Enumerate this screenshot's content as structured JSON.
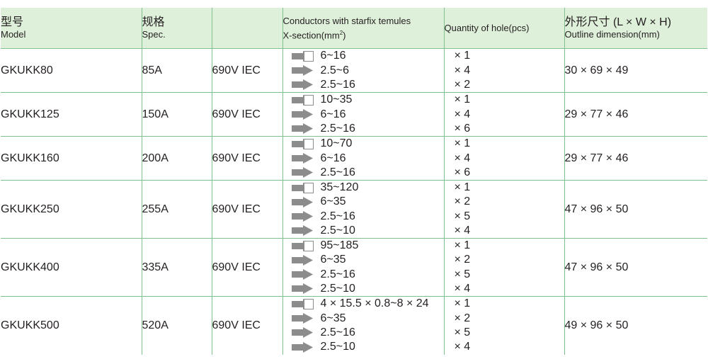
{
  "header": {
    "model_zh": "型号",
    "model_en": "Model",
    "spec_zh": "规格",
    "spec_en": "Spec.",
    "conductors_line1": "Conductors with starfix temules",
    "conductors_line2": "X-section(mm",
    "conductors_sup": "2",
    "conductors_close": ")",
    "quantity": "Quantity of hole(pcs)",
    "outline_zh": "外形尺寸 (L × W × H)",
    "outline_en": "Outline dimension(mm)"
  },
  "rows": [
    {
      "model": "GKUKK80",
      "spec": "85A",
      "voltage": "690V IEC",
      "conductors": [
        {
          "icon": "arrow-outline-icon",
          "text": "6~16"
        },
        {
          "icon": "arrow-solid-icon",
          "text": "2.5~6"
        },
        {
          "icon": "arrow-solid-icon",
          "text": "2.5~16"
        }
      ],
      "quantities": [
        "× 1",
        "× 4",
        "× 2"
      ],
      "outline": "30 × 69 × 49"
    },
    {
      "model": "GKUKK125",
      "spec": "150A",
      "voltage": "690V IEC",
      "conductors": [
        {
          "icon": "arrow-outline-icon",
          "text": "10~35"
        },
        {
          "icon": "arrow-solid-icon",
          "text": "6~16"
        },
        {
          "icon": "arrow-solid-icon",
          "text": "2.5~16"
        }
      ],
      "quantities": [
        "× 1",
        "× 4",
        "× 6"
      ],
      "outline": "29 × 77 × 46"
    },
    {
      "model": "GKUKK160",
      "spec": "200A",
      "voltage": "690V IEC",
      "conductors": [
        {
          "icon": "arrow-outline-icon",
          "text": "10~70"
        },
        {
          "icon": "arrow-solid-icon",
          "text": "6~16"
        },
        {
          "icon": "arrow-solid-icon",
          "text": "2.5~16"
        }
      ],
      "quantities": [
        "× 1",
        "× 4",
        "× 6"
      ],
      "outline": "29 × 77 × 46"
    },
    {
      "model": "GKUKK250",
      "spec": "255A",
      "voltage": "690V IEC",
      "conductors": [
        {
          "icon": "arrow-outline-icon",
          "text": "35~120"
        },
        {
          "icon": "arrow-solid-icon",
          "text": "6~35"
        },
        {
          "icon": "arrow-solid-icon",
          "text": "2.5~16"
        },
        {
          "icon": "arrow-solid-icon",
          "text": "2.5~10"
        }
      ],
      "quantities": [
        "× 1",
        "× 2",
        "× 5",
        "× 4"
      ],
      "outline": "47 × 96 × 50"
    },
    {
      "model": "GKUKK400",
      "spec": "335A",
      "voltage": "690V IEC",
      "conductors": [
        {
          "icon": "arrow-outline-icon",
          "text": "95~185"
        },
        {
          "icon": "arrow-solid-icon",
          "text": "6~35"
        },
        {
          "icon": "arrow-solid-icon",
          "text": "2.5~16"
        },
        {
          "icon": "arrow-solid-icon",
          "text": "2.5~10"
        }
      ],
      "quantities": [
        "× 1",
        "× 2",
        "× 5",
        "× 4"
      ],
      "outline": "47 × 96 × 50"
    },
    {
      "model": "GKUKK500",
      "spec": "520A",
      "voltage": "690V IEC",
      "conductors": [
        {
          "icon": "arrow-outline-icon",
          "text": "4 × 15.5 × 0.8~8 × 24"
        },
        {
          "icon": "arrow-solid-icon",
          "text": "6~35"
        },
        {
          "icon": "arrow-solid-icon",
          "text": "2.5~16"
        },
        {
          "icon": "arrow-solid-icon",
          "text": "2.5~10"
        }
      ],
      "quantities": [
        "× 1",
        "× 2",
        "× 5",
        "× 4"
      ],
      "outline": "49 × 96 × 50"
    }
  ],
  "colors": {
    "header_bg": "#dff0da",
    "grid_line": "#7fc08e",
    "arrow_gray": "#8c8c8c",
    "text": "#231f20"
  }
}
